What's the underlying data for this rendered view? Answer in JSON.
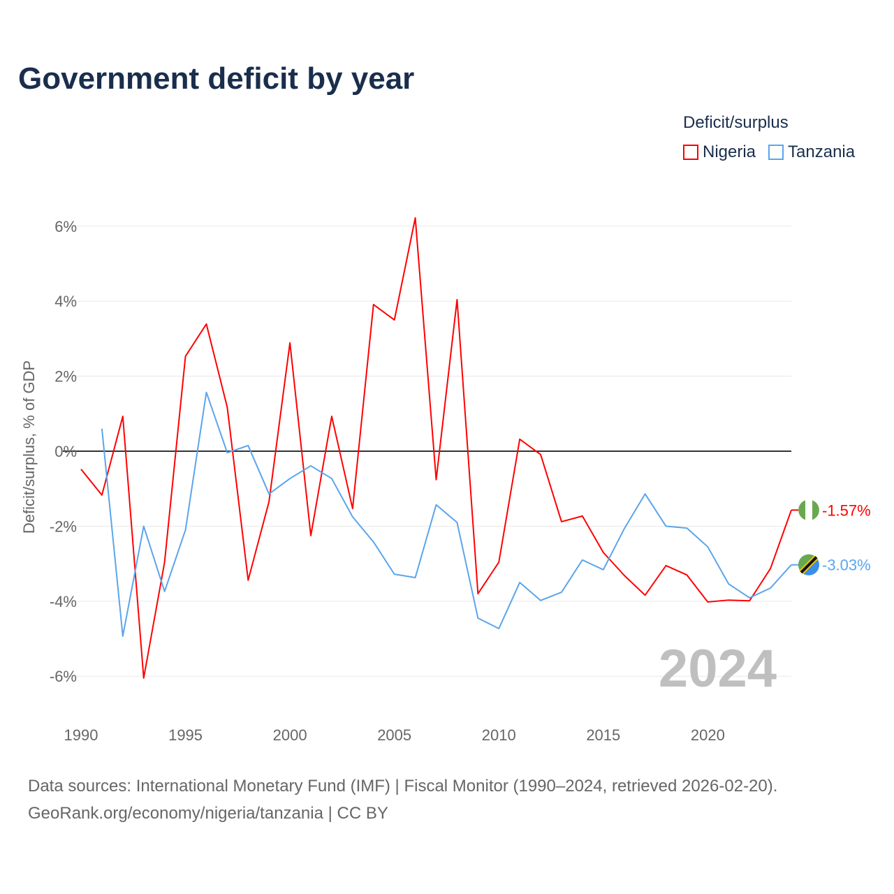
{
  "chart_data": {
    "type": "line",
    "title": "Government deficit by year",
    "ylabel": "Deficit/surplus, % of GDP",
    "xlabel": "",
    "legend_title": "Deficit/surplus",
    "legend_placement": "top-right",
    "year_watermark": "2024",
    "xlim": [
      1990,
      2024
    ],
    "ylim": [
      -7,
      6.5
    ],
    "x_ticks": [
      1990,
      1995,
      2000,
      2005,
      2010,
      2015,
      2020
    ],
    "x_tick_labels": [
      "1990",
      "1995",
      "2000",
      "2005",
      "2010",
      "2015",
      "2020"
    ],
    "y_ticks": [
      6,
      4,
      2,
      0,
      -2,
      -4,
      -6
    ],
    "y_tick_labels": [
      "6%",
      "4%",
      "2%",
      "0%",
      "-2%",
      "-4%",
      "-6%"
    ],
    "grid": true,
    "series": [
      {
        "name": "Nigeria",
        "color": "#ff0000",
        "end_label": "-1.57%",
        "x": [
          1990,
          1991,
          1992,
          1993,
          1994,
          1995,
          1996,
          1997,
          1998,
          1999,
          2000,
          2001,
          2002,
          2003,
          2004,
          2005,
          2006,
          2007,
          2008,
          2009,
          2010,
          2011,
          2012,
          2013,
          2014,
          2015,
          2016,
          2017,
          2018,
          2019,
          2020,
          2021,
          2022,
          2023,
          2024
        ],
        "values": [
          -0.48,
          -1.17,
          0.93,
          -6.05,
          -2.96,
          2.53,
          3.39,
          1.17,
          -3.44,
          -1.34,
          2.89,
          -2.25,
          0.93,
          -1.53,
          3.91,
          3.5,
          6.22,
          -0.76,
          4.04,
          -3.8,
          -2.96,
          0.32,
          -0.09,
          -1.88,
          -1.73,
          -2.7,
          -3.31,
          -3.84,
          -3.05,
          -3.3,
          -4.02,
          -3.97,
          -3.99,
          -3.13,
          -1.57
        ]
      },
      {
        "name": "Tanzania",
        "color": "#5aa5ec",
        "end_label": "-3.03%",
        "x": [
          1991,
          1992,
          1993,
          1994,
          1995,
          1996,
          1997,
          1998,
          1999,
          2000,
          2001,
          2002,
          2003,
          2004,
          2005,
          2006,
          2007,
          2008,
          2009,
          2010,
          2011,
          2012,
          2013,
          2014,
          2015,
          2016,
          2017,
          2018,
          2019,
          2020,
          2021,
          2022,
          2023,
          2024
        ],
        "values": [
          0.6,
          -4.93,
          -2.0,
          -3.74,
          -2.1,
          1.57,
          -0.04,
          0.15,
          -1.14,
          -0.73,
          -0.39,
          -0.73,
          -1.75,
          -2.42,
          -3.28,
          -3.37,
          -1.43,
          -1.9,
          -4.45,
          -4.73,
          -3.5,
          -3.98,
          -3.76,
          -2.9,
          -3.16,
          -2.07,
          -1.14,
          -2.0,
          -2.05,
          -2.55,
          -3.54,
          -3.91,
          -3.65,
          -3.03
        ]
      }
    ]
  },
  "footer": {
    "source_line": "Data sources: International Monetary Fund (IMF) | Fiscal Monitor (1990–2024, retrieved 2026-02-20).",
    "url_line": "GeoRank.org/economy/nigeria/tanzania | CC BY"
  }
}
